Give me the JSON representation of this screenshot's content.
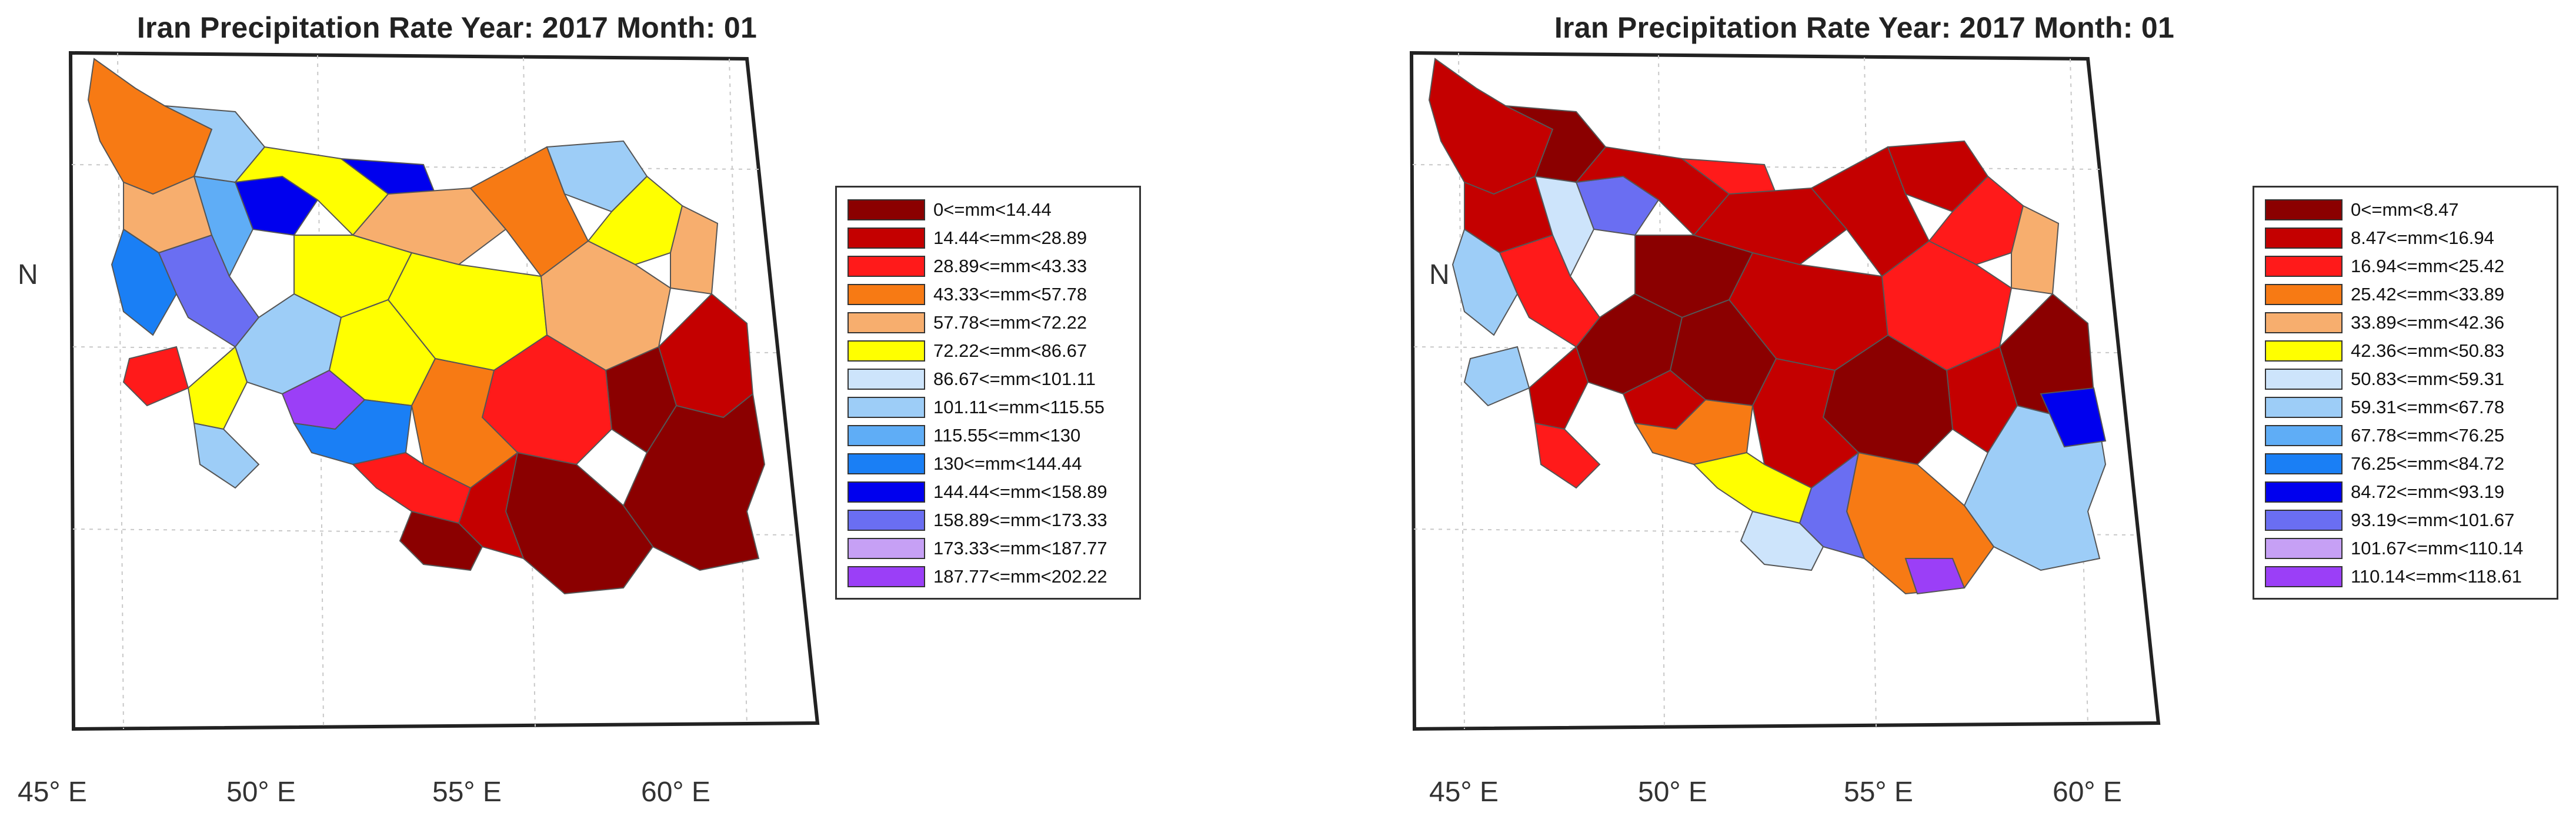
{
  "maps": [
    {
      "title": "Iran Precipitation Rate Year: 2017 Month: 01",
      "north_label": "N",
      "lon_ticks": [
        "45° E",
        "50° E",
        "55° E",
        "60° E"
      ],
      "legend": [
        {
          "label": "0<=mm<14.44",
          "color": "#8b0000"
        },
        {
          "label": "14.44<=mm<28.89",
          "color": "#c40000"
        },
        {
          "label": "28.89<=mm<43.33",
          "color": "#ff1a1a"
        },
        {
          "label": "43.33<=mm<57.78",
          "color": "#f77a14"
        },
        {
          "label": "57.78<=mm<72.22",
          "color": "#f7ae6e"
        },
        {
          "label": "72.22<=mm<86.67",
          "color": "#ffff00"
        },
        {
          "label": "86.67<=mm<101.11",
          "color": "#cde4fb"
        },
        {
          "label": "101.11<=mm<115.55",
          "color": "#9dcdf7"
        },
        {
          "label": "115.55<=mm<130",
          "color": "#5fadf6"
        },
        {
          "label": "130<=mm<144.44",
          "color": "#1a7ff5"
        },
        {
          "label": "144.44<=mm<158.89",
          "color": "#0000ee"
        },
        {
          "label": "158.89<=mm<173.33",
          "color": "#6a6ef2"
        },
        {
          "label": "173.33<=mm<187.77",
          "color": "#c6a0f5"
        },
        {
          "label": "187.77<=mm<202.22",
          "color": "#9b3ff7"
        }
      ]
    },
    {
      "title": "Iran Precipitation Rate Year: 2017 Month: 01",
      "north_label": "N",
      "lon_ticks": [
        "45° E",
        "50° E",
        "55° E",
        "60° E"
      ],
      "legend": [
        {
          "label": "0<=mm<8.47",
          "color": "#8b0000"
        },
        {
          "label": "8.47<=mm<16.94",
          "color": "#c40000"
        },
        {
          "label": "16.94<=mm<25.42",
          "color": "#ff1a1a"
        },
        {
          "label": "25.42<=mm<33.89",
          "color": "#f77a14"
        },
        {
          "label": "33.89<=mm<42.36",
          "color": "#f7ae6e"
        },
        {
          "label": "42.36<=mm<50.83",
          "color": "#ffff00"
        },
        {
          "label": "50.83<=mm<59.31",
          "color": "#cde4fb"
        },
        {
          "label": "59.31<=mm<67.78",
          "color": "#9dcdf7"
        },
        {
          "label": "67.78<=mm<76.25",
          "color": "#5fadf6"
        },
        {
          "label": "76.25<=mm<84.72",
          "color": "#1a7ff5"
        },
        {
          "label": "84.72<=mm<93.19",
          "color": "#0000ee"
        },
        {
          "label": "93.19<=mm<101.67",
          "color": "#6a6ef2"
        },
        {
          "label": "101.67<=mm<110.14",
          "color": "#c6a0f5"
        },
        {
          "label": "110.14<=mm<118.61",
          "color": "#9b3ff7"
        }
      ]
    }
  ]
}
